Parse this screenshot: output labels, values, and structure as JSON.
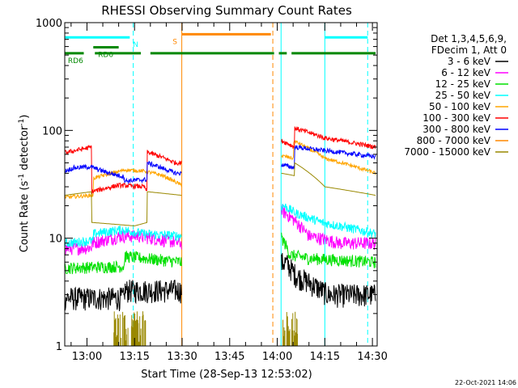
{
  "chart_data": {
    "type": "line",
    "title": "RHESSI Observing Summary Count Rates",
    "xlabel": "Start Time (28-Sep-13 12:53:02)",
    "ylabel": "Count Rate (s",
    "ylabel_sup": "-1",
    "ylabel_mid": " detector",
    "ylabel_sup2": "-1",
    "ylabel_end": ")",
    "x_unit": "minutes after 12:00 UT",
    "xlim": [
      53.0,
      151.5
    ],
    "ylim": [
      1,
      1000
    ],
    "yscale": "log",
    "x_ticks": [
      {
        "value": 60,
        "label": "13:00"
      },
      {
        "value": 75,
        "label": "13:15"
      },
      {
        "value": 90,
        "label": "13:30"
      },
      {
        "value": 105,
        "label": "13:45"
      },
      {
        "value": 120,
        "label": "14:00"
      },
      {
        "value": 135,
        "label": "14:15"
      },
      {
        "value": 150,
        "label": "14:30"
      }
    ],
    "y_ticks": [
      {
        "value": 1,
        "label": "1"
      },
      {
        "value": 10,
        "label": "10"
      },
      {
        "value": 100,
        "label": "100"
      },
      {
        "value": 1000,
        "label": "1000"
      }
    ],
    "legend_title": [
      "Det 1,3,4,5,6,9,",
      "FDecim 1, Att 0"
    ],
    "legend_position": "right",
    "series": [
      {
        "name": "3 - 6 keV",
        "color": "#000000",
        "noise": 0.25,
        "points": [
          [
            53,
            2.8
          ],
          [
            71.8,
            2.8
          ],
          [
            71.8,
            3.3
          ],
          [
            89.8,
            3.3
          ],
          [
            122.5,
            6
          ],
          [
            126,
            4.5
          ],
          [
            136,
            3
          ],
          [
            151,
            3
          ]
        ]
      },
      {
        "name": "6 - 12 keV",
        "color": "#ff00ff",
        "noise": 0.14,
        "points": [
          [
            53,
            8
          ],
          [
            61.5,
            8.2
          ],
          [
            61.5,
            9
          ],
          [
            71,
            10.5
          ],
          [
            76,
            10.5
          ],
          [
            89.8,
            9
          ],
          [
            121.5,
            18
          ],
          [
            125,
            15
          ],
          [
            130,
            10.5
          ],
          [
            140,
            9
          ],
          [
            151,
            9
          ]
        ]
      },
      {
        "name": "12 - 25 keV",
        "color": "#00e000",
        "noise": 0.13,
        "points": [
          [
            53,
            5.3
          ],
          [
            71.8,
            5.5
          ],
          [
            71.8,
            6.8
          ],
          [
            89.8,
            6
          ],
          [
            121.5,
            10
          ],
          [
            124,
            7
          ],
          [
            130,
            6.5
          ],
          [
            151,
            6
          ]
        ]
      },
      {
        "name": "25 - 50 keV",
        "color": "#00ffff",
        "noise": 0.1,
        "points": [
          [
            53,
            9
          ],
          [
            62,
            9.5
          ],
          [
            62,
            11
          ],
          [
            71,
            12
          ],
          [
            78,
            11
          ],
          [
            89.8,
            10.5
          ],
          [
            122,
            20
          ],
          [
            126,
            17
          ],
          [
            134,
            14
          ],
          [
            151,
            11
          ]
        ]
      },
      {
        "name": "50 - 100 keV",
        "color": "#ffa500",
        "noise": 0.04,
        "points": [
          [
            53,
            24
          ],
          [
            62,
            25
          ],
          [
            62,
            36
          ],
          [
            72,
            43
          ],
          [
            78,
            42
          ],
          [
            84,
            38
          ],
          [
            89.8,
            31
          ],
          [
            121.5,
            58
          ],
          [
            125.2,
            55
          ],
          [
            125.2,
            80
          ],
          [
            135,
            55
          ],
          [
            151,
            40
          ]
        ]
      },
      {
        "name": "100 - 300 keV",
        "color": "#ff0000",
        "noise": 0.05,
        "points": [
          [
            53,
            62
          ],
          [
            61.5,
            70
          ],
          [
            61.5,
            27
          ],
          [
            70,
            31
          ],
          [
            78,
            30
          ],
          [
            79,
            27
          ],
          [
            79,
            63
          ],
          [
            88,
            50
          ],
          [
            89.8,
            50
          ],
          [
            121.5,
            80
          ],
          [
            125.5,
            70
          ],
          [
            125.5,
            105
          ],
          [
            135,
            85
          ],
          [
            151,
            70
          ]
        ]
      },
      {
        "name": "300 - 800 keV",
        "color": "#0000ff",
        "noise": 0.05,
        "points": [
          [
            53,
            42
          ],
          [
            56,
            45
          ],
          [
            61,
            46
          ],
          [
            66,
            41
          ],
          [
            71.8,
            37
          ],
          [
            71.8,
            34
          ],
          [
            79,
            35
          ],
          [
            79,
            50
          ],
          [
            88,
            40
          ],
          [
            89.8,
            40
          ],
          [
            121.5,
            48
          ],
          [
            125.5,
            45
          ],
          [
            125.5,
            70
          ],
          [
            135,
            65
          ],
          [
            151,
            57
          ]
        ]
      },
      {
        "name": "800 - 7000 keV",
        "color": "#ff8800",
        "noise": 0.0,
        "points": []
      },
      {
        "name": "7000 - 15000 keV",
        "color": "#998800",
        "noise": 0.0,
        "points": [
          [
            53,
            25
          ],
          [
            61.5,
            27
          ],
          [
            61.5,
            14
          ],
          [
            75,
            13
          ],
          [
            79,
            14
          ],
          [
            79,
            27
          ],
          [
            89.8,
            25
          ],
          [
            121.5,
            40
          ],
          [
            125.5,
            38
          ],
          [
            125.5,
            50
          ],
          [
            135,
            30
          ],
          [
            151,
            25
          ]
        ]
      }
    ],
    "gaps": [
      [
        89.9,
        121.2
      ]
    ],
    "low_energy_spikes": {
      "color": "#998800",
      "ranges": [
        [
          68.5,
          78.5
        ],
        [
          121.8,
          126.5
        ]
      ],
      "floor": 1,
      "top": 2.1
    },
    "state_bars": [
      {
        "label": "N",
        "color": "#00ffff",
        "y": 730,
        "segments": [
          [
            53,
            73.5
          ],
          [
            135,
            148.5
          ]
        ],
        "label_x": 74.5
      },
      {
        "label": "S",
        "color": "#ff8800",
        "y": 780,
        "segments": [
          [
            90,
            118
          ]
        ],
        "label_x": 87
      },
      {
        "label": "RD0",
        "color": "#008800",
        "y": 590,
        "segments": [
          [
            62,
            70
          ]
        ],
        "label_x": 63.5
      },
      {
        "label": "RD6",
        "color": "#008800",
        "y": 520,
        "segments": [
          [
            53,
            59
          ],
          [
            62.5,
            77
          ],
          [
            80,
            119
          ],
          [
            120.5,
            123
          ],
          [
            124.5,
            151
          ]
        ],
        "label_x": 54
      }
    ],
    "vlines": [
      {
        "x": 53.0,
        "color": "#00ffff",
        "style": "solid"
      },
      {
        "x": 74.6,
        "color": "#00ffff",
        "style": "dashed"
      },
      {
        "x": 89.9,
        "color": "#ff8800",
        "style": "solid"
      },
      {
        "x": 118.6,
        "color": "#ff8800",
        "style": "dashed"
      },
      {
        "x": 121.2,
        "color": "#00ffff",
        "style": "solid"
      },
      {
        "x": 135.0,
        "color": "#00ffff",
        "style": "solid"
      },
      {
        "x": 148.5,
        "color": "#00ffff",
        "style": "dashed"
      }
    ]
  },
  "footer": {
    "timestamp": "22-Oct-2021 14:06"
  }
}
